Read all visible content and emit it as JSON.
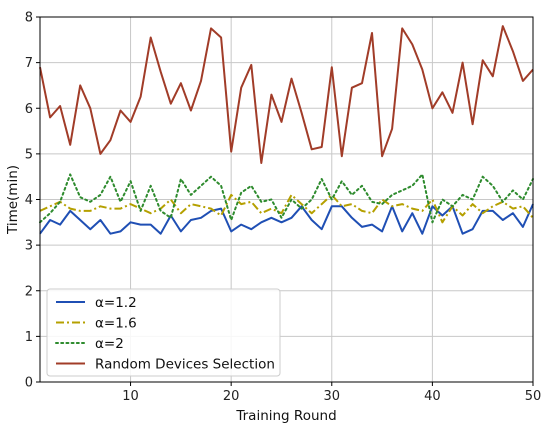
{
  "chart_data": {
    "type": "line",
    "title": "",
    "xlabel": "Training Round",
    "ylabel": "Time(min)",
    "xlim": [
      1,
      50
    ],
    "ylim": [
      0,
      8
    ],
    "xticks": [
      10,
      20,
      30,
      40,
      50
    ],
    "yticks": [
      0,
      1,
      2,
      3,
      4,
      5,
      6,
      7,
      8
    ],
    "grid": true,
    "legend_position": "lower-left",
    "x": [
      1,
      2,
      3,
      4,
      5,
      6,
      7,
      8,
      9,
      10,
      11,
      12,
      13,
      14,
      15,
      16,
      17,
      18,
      19,
      20,
      21,
      22,
      23,
      24,
      25,
      26,
      27,
      28,
      29,
      30,
      31,
      32,
      33,
      34,
      35,
      36,
      37,
      38,
      39,
      40,
      41,
      42,
      43,
      44,
      45,
      46,
      47,
      48,
      49,
      50
    ],
    "series": [
      {
        "name": "α=1.2",
        "color": "#1f4fb4",
        "style": "solid",
        "values": [
          3.25,
          3.55,
          3.45,
          3.75,
          3.55,
          3.35,
          3.55,
          3.25,
          3.3,
          3.5,
          3.45,
          3.45,
          3.25,
          3.65,
          3.3,
          3.55,
          3.6,
          3.75,
          3.8,
          3.3,
          3.45,
          3.35,
          3.5,
          3.6,
          3.5,
          3.6,
          3.85,
          3.55,
          3.35,
          3.85,
          3.85,
          3.6,
          3.4,
          3.45,
          3.3,
          3.85,
          3.3,
          3.7,
          3.25,
          3.85,
          3.65,
          3.85,
          3.25,
          3.35,
          3.75,
          3.75,
          3.55,
          3.7,
          3.4,
          3.9
        ]
      },
      {
        "name": "α=1.6",
        "color": "#b5a000",
        "style": "dashdot",
        "values": [
          3.75,
          3.85,
          3.95,
          3.8,
          3.75,
          3.75,
          3.85,
          3.8,
          3.8,
          3.9,
          3.8,
          3.7,
          3.8,
          4.0,
          3.7,
          3.9,
          3.85,
          3.8,
          3.65,
          4.1,
          3.9,
          3.95,
          3.7,
          3.8,
          3.7,
          4.1,
          3.9,
          3.7,
          3.9,
          4.1,
          3.85,
          3.9,
          3.75,
          3.7,
          4.0,
          3.85,
          3.9,
          3.8,
          3.75,
          4.0,
          3.5,
          3.85,
          3.65,
          3.9,
          3.7,
          3.85,
          3.95,
          3.8,
          3.85,
          3.6
        ]
      },
      {
        "name": "α=2",
        "color": "#2e8b2e",
        "style": "dotted",
        "values": [
          3.5,
          3.7,
          3.95,
          4.55,
          4.05,
          3.95,
          4.1,
          4.5,
          3.95,
          4.4,
          3.75,
          4.3,
          3.75,
          3.6,
          4.45,
          4.1,
          4.3,
          4.5,
          4.3,
          3.55,
          4.15,
          4.3,
          3.95,
          4.0,
          3.6,
          4.0,
          3.8,
          4.0,
          4.45,
          4.0,
          4.4,
          4.1,
          4.3,
          3.95,
          3.9,
          4.1,
          4.2,
          4.3,
          4.55,
          3.5,
          4.0,
          3.85,
          4.1,
          4.0,
          4.5,
          4.3,
          3.95,
          4.2,
          4.0,
          4.45
        ]
      },
      {
        "name": "Random Devices Selection",
        "color": "#a13c28",
        "style": "solid",
        "values": [
          6.9,
          5.8,
          6.05,
          5.2,
          6.5,
          6.0,
          5.0,
          5.3,
          5.95,
          5.7,
          6.25,
          7.55,
          6.8,
          6.1,
          6.55,
          5.95,
          6.6,
          7.75,
          7.55,
          5.05,
          6.45,
          6.95,
          4.8,
          6.3,
          5.7,
          6.65,
          5.9,
          5.1,
          5.15,
          6.9,
          4.95,
          6.45,
          6.55,
          7.65,
          4.95,
          5.55,
          7.75,
          7.4,
          6.85,
          6.0,
          6.35,
          5.9,
          7.0,
          5.65,
          7.05,
          6.7,
          7.8,
          7.25,
          6.6,
          6.85
        ]
      }
    ]
  }
}
